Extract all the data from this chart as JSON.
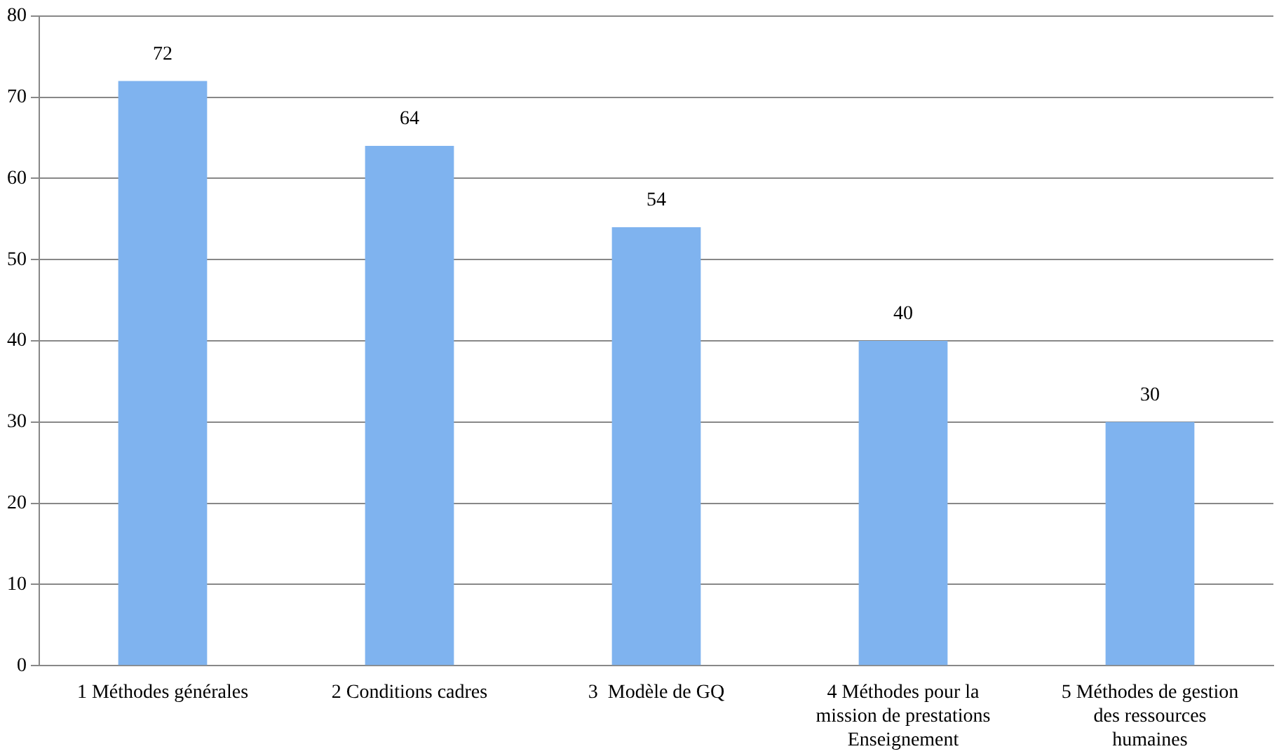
{
  "chart_data": {
    "type": "bar",
    "categories": [
      "1 Méthodes générales",
      "2 Conditions cadres",
      "3  Modèle de GQ",
      "4 Méthodes pour la mission de prestations Enseignement",
      "5 Méthodes de gestion des ressources humaines"
    ],
    "values": [
      72,
      64,
      54,
      40,
      30
    ],
    "color": "#7fb3ef",
    "ylim": [
      0,
      80
    ],
    "yticks": [
      0,
      10,
      20,
      30,
      40,
      50,
      60,
      70,
      80
    ],
    "grid": "y",
    "data_labels": true
  }
}
